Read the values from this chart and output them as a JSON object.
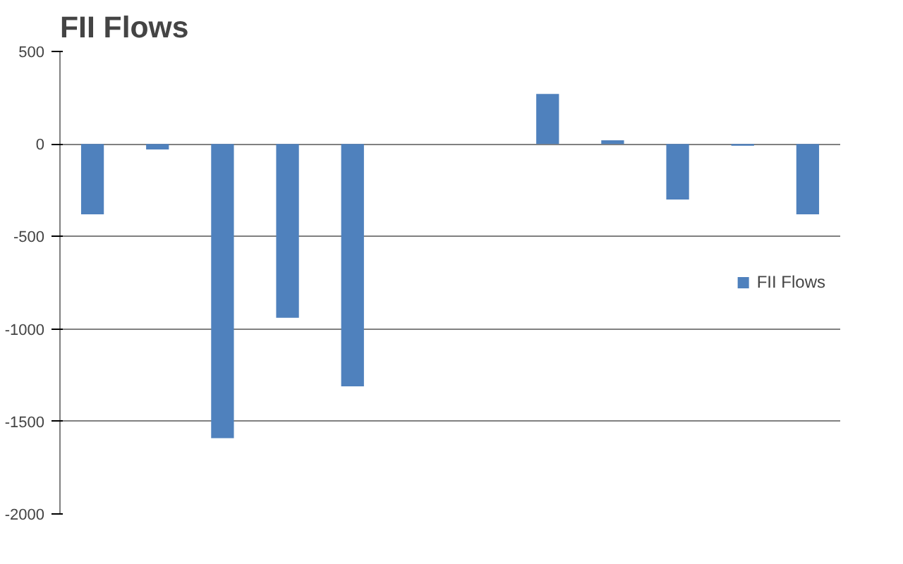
{
  "chart_data": {
    "type": "bar",
    "title": "FII Flows",
    "categories": [
      null,
      null,
      null,
      null,
      null,
      null,
      null,
      null,
      null,
      null,
      null,
      null
    ],
    "series": [
      {
        "name": "FII Flows",
        "color": "#4f81bd",
        "values": [
          -380,
          -30,
          -1590,
          -940,
          -1310,
          null,
          null,
          270,
          20,
          -300,
          -10,
          -380
        ]
      }
    ],
    "ylim": [
      -2000,
      500
    ],
    "yticks": [
      -2000,
      -1500,
      -1000,
      -500,
      0,
      500
    ],
    "grid": "y",
    "legend": "right",
    "tick_labels": "y"
  }
}
